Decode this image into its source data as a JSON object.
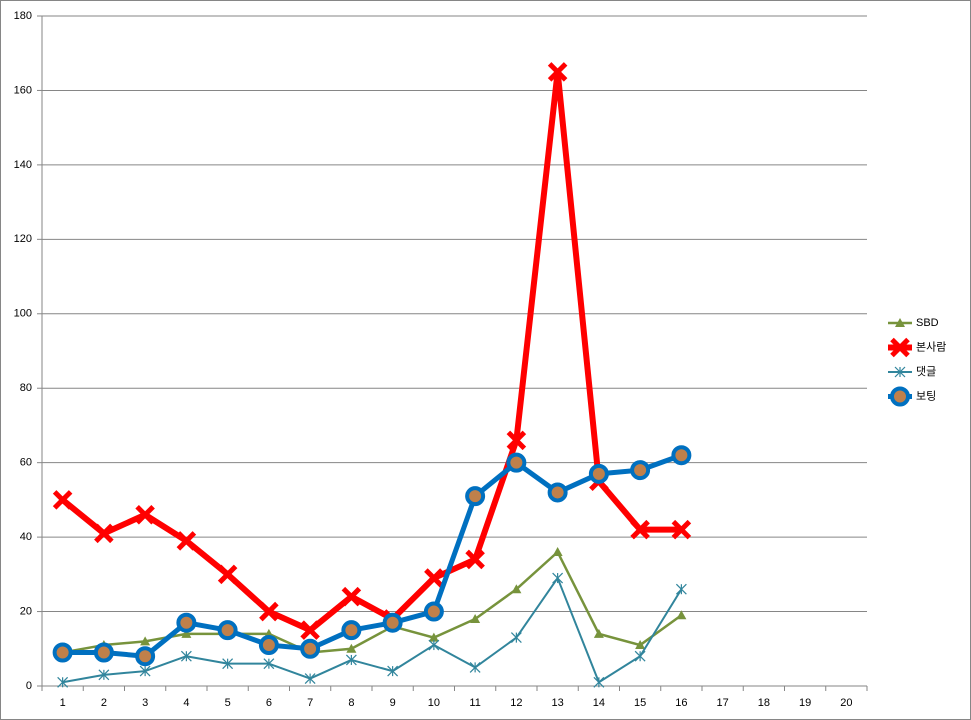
{
  "chart_data": {
    "type": "line",
    "categories": [
      "1",
      "2",
      "3",
      "4",
      "5",
      "6",
      "7",
      "8",
      "9",
      "10",
      "11",
      "12",
      "13",
      "14",
      "15",
      "16",
      "17",
      "18",
      "19",
      "20"
    ],
    "series": [
      {
        "name": "SBD",
        "color": "#77933c",
        "marker": "triangle",
        "values": [
          9,
          11,
          12,
          14,
          14,
          14,
          9,
          10,
          16,
          13,
          18,
          26,
          36,
          14,
          11,
          19,
          null,
          null,
          null,
          null
        ]
      },
      {
        "name": "본사람",
        "color": "#ff0000",
        "marker": "x",
        "values": [
          50,
          41,
          46,
          39,
          30,
          20,
          15,
          24,
          18,
          29,
          34,
          66,
          165,
          55,
          42,
          42,
          null,
          null,
          null,
          null
        ]
      },
      {
        "name": "댓글",
        "color": "#31859c",
        "marker": "asterisk",
        "values": [
          1,
          3,
          4,
          8,
          6,
          6,
          2,
          7,
          4,
          11,
          5,
          13,
          29,
          1,
          8,
          26,
          null,
          null,
          null,
          null
        ]
      },
      {
        "name": "보팅",
        "color": "#0070c0",
        "marker": "circle",
        "marker_fill": "#c0804a",
        "values": [
          9,
          9,
          8,
          17,
          15,
          11,
          10,
          15,
          17,
          20,
          51,
          60,
          52,
          57,
          58,
          62,
          null,
          null,
          null,
          null
        ]
      }
    ],
    "ylim": [
      0,
      180
    ],
    "yticks": [
      0,
      20,
      40,
      60,
      80,
      100,
      120,
      140,
      160,
      180
    ],
    "grid": true,
    "legend": "right"
  }
}
